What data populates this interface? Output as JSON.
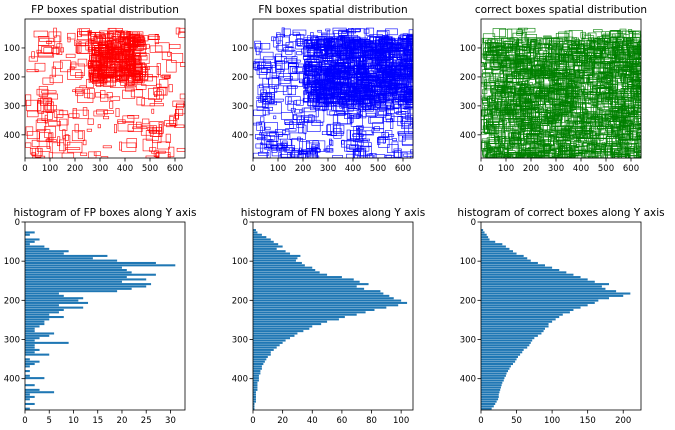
{
  "chart_data": [
    {
      "type": "scatter",
      "subtype": "box-outlines",
      "title": "FP boxes spatial distribution",
      "color": "#ff0000",
      "xlim": [
        0,
        640
      ],
      "ylim": [
        480,
        0
      ],
      "y_inverted": true,
      "xticks": [
        0,
        100,
        200,
        300,
        400,
        500,
        600
      ],
      "yticks": [
        100,
        200,
        300,
        400
      ],
      "density_hotspot": {
        "x": [
          250,
          440
        ],
        "y": [
          40,
          200
        ]
      },
      "box_count_estimate": 550,
      "grid": false
    },
    {
      "type": "scatter",
      "subtype": "box-outlines",
      "title": "FN boxes spatial distribution",
      "color": "#0000ff",
      "xlim": [
        0,
        640
      ],
      "ylim": [
        480,
        0
      ],
      "y_inverted": true,
      "xticks": [
        0,
        100,
        200,
        300,
        400,
        500,
        600
      ],
      "yticks": [
        100,
        200,
        300,
        400
      ],
      "density_hotspot": {
        "x": [
          200,
          640
        ],
        "y": [
          60,
          280
        ]
      },
      "box_count_estimate": 1400,
      "grid": false
    },
    {
      "type": "scatter",
      "subtype": "box-outlines",
      "title": "correct boxes spatial distribution",
      "color": "#008000",
      "xlim": [
        0,
        640
      ],
      "ylim": [
        480,
        0
      ],
      "y_inverted": true,
      "xticks": [
        0,
        100,
        200,
        300,
        400,
        500,
        600
      ],
      "yticks": [
        100,
        200,
        300,
        400
      ],
      "density_hotspot": {
        "x": [
          0,
          640
        ],
        "y": [
          60,
          480
        ]
      },
      "box_count_estimate": 1800,
      "grid": false
    },
    {
      "type": "bar",
      "orientation": "horizontal",
      "title": "histogram of FP boxes along Y axis",
      "color": "#1f77b4",
      "bin_width": 6,
      "ylim": [
        480,
        0
      ],
      "xlim": [
        0,
        33
      ],
      "xticks": [
        0,
        5,
        10,
        15,
        20,
        25,
        30
      ],
      "yticks": [
        0,
        100,
        200,
        300,
        400
      ],
      "y_bins": [
        0,
        6,
        12,
        18,
        24,
        30,
        36,
        42,
        48,
        54,
        60,
        66,
        72,
        78,
        84,
        90,
        96,
        102,
        108,
        114,
        120,
        126,
        132,
        138,
        144,
        150,
        156,
        162,
        168,
        174,
        180,
        186,
        192,
        198,
        204,
        210,
        216,
        222,
        228,
        234,
        240,
        246,
        252,
        258,
        264,
        270,
        276,
        282,
        288,
        294,
        300,
        306,
        312,
        318,
        324,
        330,
        336,
        342,
        348,
        354,
        360,
        366,
        372,
        378,
        384,
        390,
        396,
        402,
        408,
        414,
        420,
        426,
        432,
        438,
        444,
        450,
        456,
        462,
        468,
        474
      ],
      "values": [
        0,
        0,
        0,
        0,
        2,
        1,
        0,
        3,
        2,
        1,
        4,
        5,
        9,
        8,
        17,
        14,
        19,
        27,
        31,
        20,
        21,
        22,
        27,
        21,
        25,
        20,
        26,
        25,
        22,
        19,
        7,
        8,
        12,
        11,
        13,
        7,
        12,
        8,
        7,
        5,
        8,
        5,
        4,
        4,
        3,
        2,
        2,
        6,
        5,
        3,
        2,
        9,
        2,
        2,
        3,
        2,
        5,
        0,
        1,
        3,
        2,
        1,
        0,
        1,
        0,
        1,
        4,
        0,
        0,
        2,
        0,
        3,
        6,
        1,
        2,
        1,
        0,
        2,
        0,
        1
      ]
    },
    {
      "type": "bar",
      "orientation": "horizontal",
      "title": "histogram of FN boxes along Y axis",
      "color": "#1f77b4",
      "bin_width": 6,
      "ylim": [
        480,
        0
      ],
      "xlim": [
        0,
        108
      ],
      "xticks": [
        0,
        20,
        40,
        60,
        80,
        100
      ],
      "yticks": [
        0,
        100,
        200,
        300,
        400
      ],
      "y_bins": [
        0,
        6,
        12,
        18,
        24,
        30,
        36,
        42,
        48,
        54,
        60,
        66,
        72,
        78,
        84,
        90,
        96,
        102,
        108,
        114,
        120,
        126,
        132,
        138,
        144,
        150,
        156,
        162,
        168,
        174,
        180,
        186,
        192,
        198,
        204,
        210,
        216,
        222,
        228,
        234,
        240,
        246,
        252,
        258,
        264,
        270,
        276,
        282,
        288,
        294,
        300,
        306,
        312,
        318,
        324,
        330,
        336,
        342,
        348,
        354,
        360,
        366,
        372,
        378,
        384,
        390,
        396,
        402,
        408,
        414,
        420,
        426,
        432,
        438,
        444,
        450,
        456,
        462,
        468,
        474
      ],
      "values": [
        0,
        0,
        0,
        2,
        3,
        6,
        9,
        12,
        14,
        17,
        20,
        16,
        22,
        25,
        32,
        30,
        29,
        33,
        35,
        40,
        42,
        45,
        50,
        60,
        68,
        72,
        78,
        70,
        75,
        86,
        88,
        92,
        95,
        100,
        104,
        98,
        90,
        82,
        76,
        70,
        62,
        58,
        50,
        46,
        40,
        38,
        34,
        30,
        28,
        25,
        22,
        20,
        18,
        16,
        14,
        12,
        12,
        10,
        9,
        8,
        7,
        6,
        6,
        5,
        5,
        4,
        4,
        4,
        3,
        3,
        3,
        3,
        2,
        2,
        2,
        2,
        2,
        1,
        1,
        1
      ]
    },
    {
      "type": "bar",
      "orientation": "horizontal",
      "title": "histogram of correct boxes along Y axis",
      "color": "#1f77b4",
      "bin_width": 6,
      "ylim": [
        480,
        0
      ],
      "xlim": [
        0,
        225
      ],
      "xticks": [
        0,
        50,
        100,
        150,
        200
      ],
      "yticks": [
        0,
        100,
        200,
        300,
        400
      ],
      "y_bins": [
        0,
        6,
        12,
        18,
        24,
        30,
        36,
        42,
        48,
        54,
        60,
        66,
        72,
        78,
        84,
        90,
        96,
        102,
        108,
        114,
        120,
        126,
        132,
        138,
        144,
        150,
        156,
        162,
        168,
        174,
        180,
        186,
        192,
        198,
        204,
        210,
        216,
        222,
        228,
        234,
        240,
        246,
        252,
        258,
        264,
        270,
        276,
        282,
        288,
        294,
        300,
        306,
        312,
        318,
        324,
        330,
        336,
        342,
        348,
        354,
        360,
        366,
        372,
        378,
        384,
        390,
        396,
        402,
        408,
        414,
        420,
        426,
        432,
        438,
        444,
        450,
        456,
        462,
        468,
        474
      ],
      "values": [
        0,
        0,
        0,
        3,
        5,
        8,
        10,
        12,
        20,
        30,
        35,
        40,
        45,
        50,
        60,
        65,
        70,
        80,
        90,
        100,
        110,
        120,
        130,
        140,
        150,
        160,
        180,
        170,
        175,
        190,
        210,
        200,
        180,
        165,
        160,
        150,
        140,
        130,
        125,
        115,
        110,
        105,
        100,
        95,
        95,
        90,
        88,
        85,
        80,
        75,
        72,
        70,
        68,
        65,
        60,
        58,
        55,
        52,
        50,
        48,
        45,
        42,
        40,
        38,
        36,
        35,
        33,
        32,
        30,
        29,
        28,
        27,
        26,
        25,
        25,
        24,
        22,
        20,
        18,
        15
      ]
    }
  ]
}
